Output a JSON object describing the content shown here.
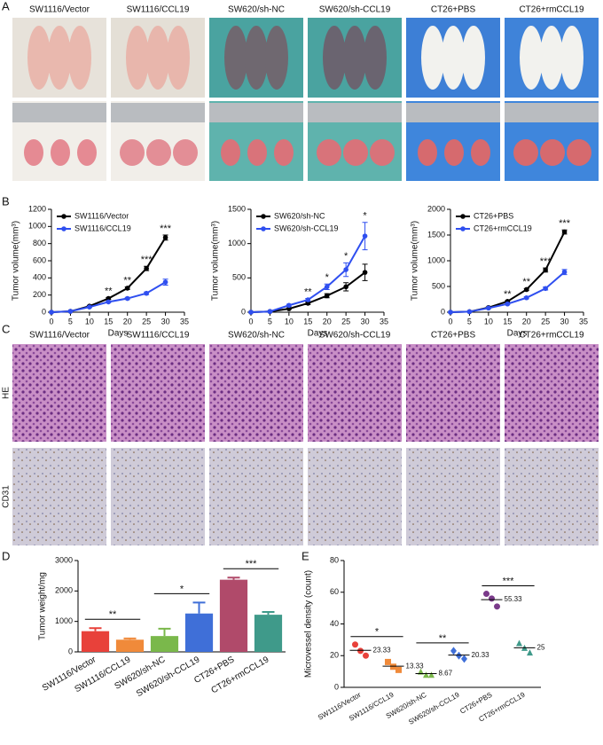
{
  "panel_letters": [
    "A",
    "B",
    "C",
    "D",
    "E"
  ],
  "photo_panel_a": {
    "labels": [
      "SW1116/Vector",
      "SW1116/CCL19",
      "SW620/sh-NC",
      "SW620/sh-CCL19",
      "CT26+PBS",
      "CT26+rmCCL19"
    ]
  },
  "photo_panel_c": {
    "labels": [
      "SW1116/Vector",
      "SW1116/CCL19",
      "SW620/sh-NC",
      "SW620/sh-CCL19",
      "CT26+PBS",
      "CT26+rmCCL19"
    ],
    "row_labels": [
      "HE",
      "CD31"
    ]
  },
  "chart_data": [
    {
      "type": "line",
      "x_label": "Days",
      "y_label": "Tumor volume(mm³)",
      "x": [
        0,
        5,
        10,
        15,
        20,
        25,
        30
      ],
      "xlim": [
        0,
        35
      ],
      "xticks": [
        0,
        5,
        10,
        15,
        20,
        25,
        30,
        35
      ],
      "ylim": [
        0,
        1200
      ],
      "yticks": [
        0,
        200,
        400,
        600,
        800,
        1000,
        1200
      ],
      "legend": "upper-left",
      "stars": [
        null,
        null,
        null,
        "**",
        "**",
        "***",
        "***"
      ],
      "series": [
        {
          "name": "SW1116/Vector",
          "color": "#000000",
          "values": [
            0,
            10,
            70,
            160,
            280,
            510,
            870
          ],
          "errors": [
            0,
            3,
            8,
            10,
            15,
            25,
            30
          ]
        },
        {
          "name": "SW1116/CCL19",
          "color": "#2f4ff0",
          "values": [
            0,
            10,
            60,
            120,
            160,
            220,
            350
          ],
          "errors": [
            0,
            3,
            6,
            10,
            12,
            15,
            35
          ]
        }
      ]
    },
    {
      "type": "line",
      "x_label": "Days",
      "y_label": "Tumor volume(mm³)",
      "x": [
        0,
        5,
        10,
        15,
        20,
        25,
        30
      ],
      "xlim": [
        0,
        35
      ],
      "xticks": [
        0,
        5,
        10,
        15,
        20,
        25,
        30,
        35
      ],
      "ylim": [
        0,
        1500
      ],
      "yticks": [
        0,
        500,
        1000,
        1500
      ],
      "legend": "upper-left",
      "stars": [
        null,
        null,
        null,
        "**",
        "*",
        "*",
        "*"
      ],
      "series": [
        {
          "name": "SW620/sh-NC",
          "color": "#000000",
          "values": [
            0,
            10,
            50,
            130,
            240,
            370,
            580
          ],
          "errors": [
            0,
            5,
            10,
            20,
            30,
            60,
            120
          ]
        },
        {
          "name": "SW620/sh-CCL19",
          "color": "#2f4ff0",
          "values": [
            0,
            10,
            100,
            180,
            370,
            620,
            1110
          ],
          "errors": [
            0,
            5,
            15,
            20,
            40,
            100,
            200
          ]
        }
      ]
    },
    {
      "type": "line",
      "x_label": "Days",
      "y_label": "Tumor volume(mm³)",
      "x": [
        0,
        5,
        10,
        15,
        20,
        25,
        30
      ],
      "xlim": [
        0,
        35
      ],
      "xticks": [
        0,
        5,
        10,
        15,
        20,
        25,
        30,
        35
      ],
      "ylim": [
        0,
        2000
      ],
      "yticks": [
        0,
        500,
        1000,
        1500,
        2000
      ],
      "legend": "upper-left",
      "stars": [
        null,
        null,
        null,
        "**",
        "**",
        "***",
        "***"
      ],
      "series": [
        {
          "name": "CT26+PBS",
          "color": "#000000",
          "values": [
            0,
            10,
            90,
            210,
            440,
            820,
            1560
          ],
          "errors": [
            0,
            5,
            10,
            15,
            20,
            40,
            40
          ]
        },
        {
          "name": "CT26+rmCCL19",
          "color": "#2f4ff0",
          "values": [
            0,
            10,
            80,
            160,
            280,
            460,
            780
          ],
          "errors": [
            0,
            5,
            10,
            15,
            20,
            30,
            50
          ]
        }
      ]
    },
    {
      "type": "bar",
      "y_label": "Tumor weight/mg",
      "categories": [
        "SW1116/Vector",
        "SW1116/CCL19",
        "SW620/sh-NC",
        "SW620/sh-CCL19",
        "CT26+PBS",
        "CT26+rmCCL19"
      ],
      "values": [
        680,
        400,
        520,
        1260,
        2370,
        1220
      ],
      "errors": [
        100,
        40,
        240,
        360,
        70,
        90
      ],
      "colors": [
        "#e8413a",
        "#f08a3a",
        "#7ab84b",
        "#3f6fd8",
        "#b04a6a",
        "#3f9a8a"
      ],
      "ylim": [
        0,
        3000
      ],
      "yticks": [
        0,
        1000,
        2000,
        3000
      ],
      "significance": [
        "**",
        "*",
        "***"
      ]
    },
    {
      "type": "scatter",
      "y_label": "Microvessel density (count)",
      "categories": [
        "SW1116/Vector",
        "SW1116/CCL19",
        "SW620/sh-NC",
        "SW620/sh-CCL19",
        "CT26+PBS",
        "CT26+rmCCL19"
      ],
      "points": [
        [
          27,
          23,
          20
        ],
        [
          16,
          13,
          11
        ],
        [
          10,
          8,
          8
        ],
        [
          23,
          20,
          18
        ],
        [
          59,
          56,
          51
        ],
        [
          28,
          25,
          22
        ]
      ],
      "means": [
        23.33,
        13.33,
        8.67,
        20.33,
        55.33,
        25
      ],
      "value_labels": [
        "23.33",
        "13.33",
        "8.67",
        "20.33",
        "55.33",
        "25"
      ],
      "colors": [
        "#e8413a",
        "#f08a3a",
        "#7ab84b",
        "#3f6fd8",
        "#7a3a8a",
        "#3f9a8a"
      ],
      "markers": [
        "circle",
        "square",
        "triangle",
        "diamond",
        "circle",
        "triangle"
      ],
      "ylim": [
        0,
        80
      ],
      "yticks": [
        0,
        20,
        40,
        60,
        80
      ],
      "significance": [
        "*",
        "**",
        "***"
      ]
    }
  ]
}
